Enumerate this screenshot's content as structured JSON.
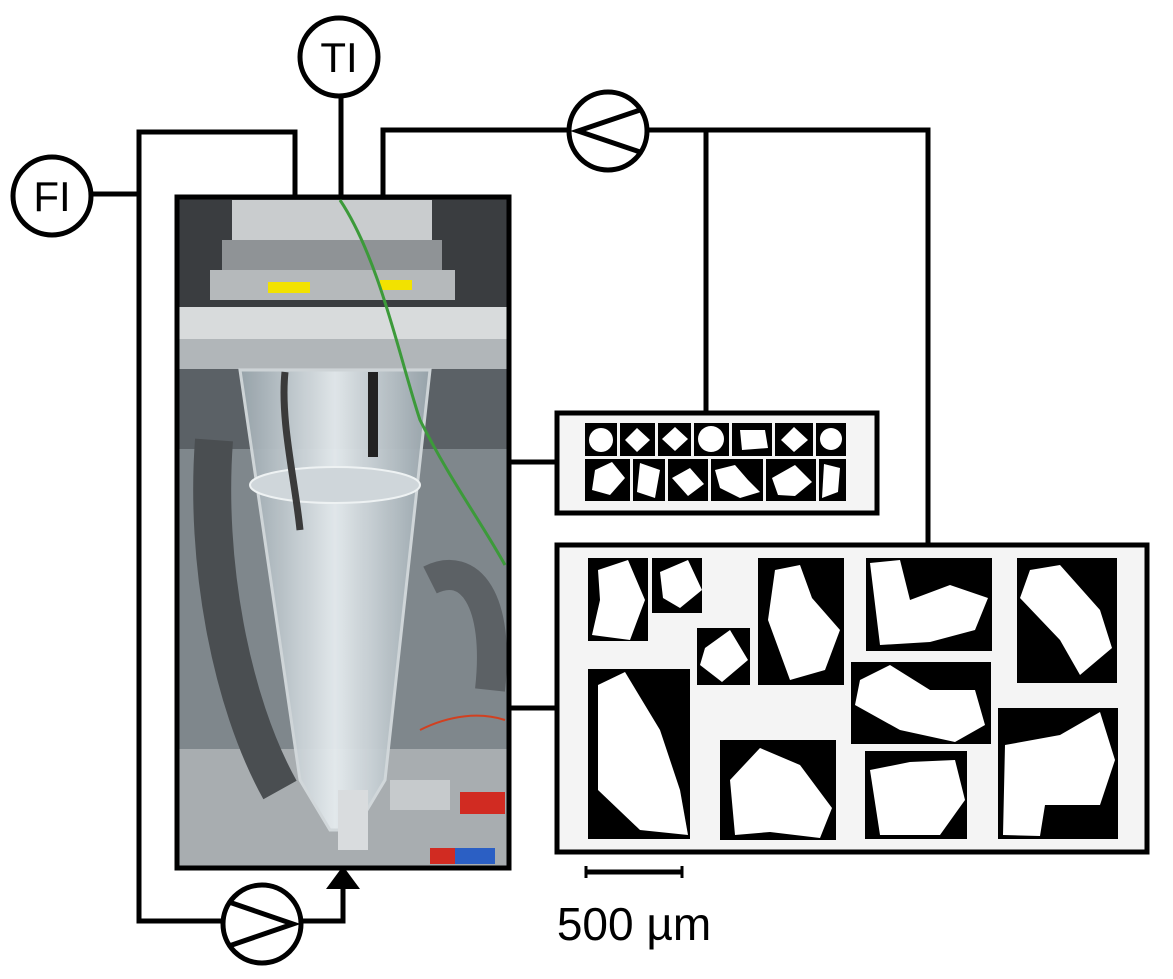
{
  "instruments": {
    "flow_indicator": "FI",
    "temperature_indicator": "TI"
  },
  "scale_bar": {
    "label": "500 µm"
  },
  "colors": {
    "line": "#000000",
    "particle": "#ffffff",
    "particle_background": "#000000",
    "panel_background": "#f4f4f4"
  }
}
